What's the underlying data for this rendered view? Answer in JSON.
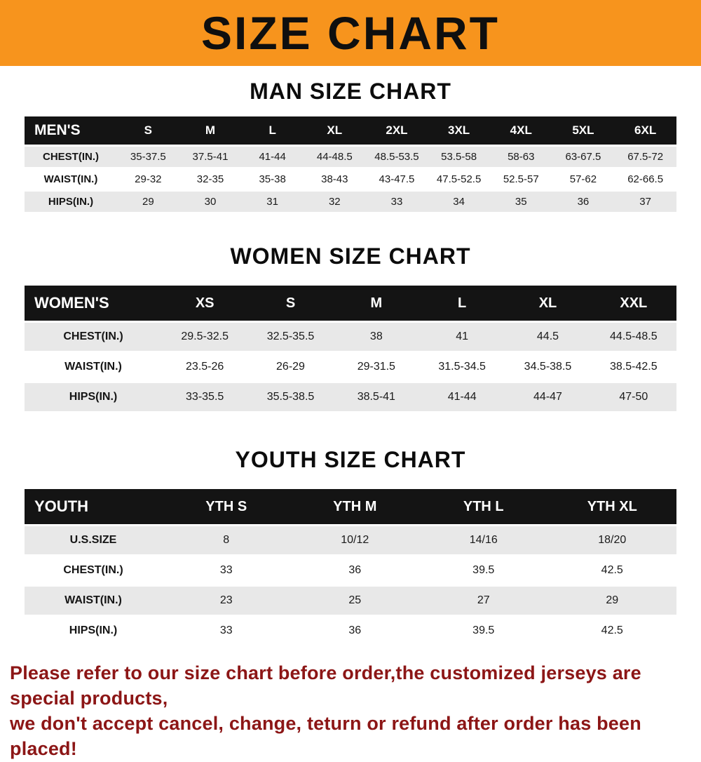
{
  "banner": {
    "title": "SIZE CHART",
    "bg_color": "#F7941D",
    "text_color": "#0F0F0F"
  },
  "chart_data": [
    {
      "type": "table",
      "title": "MAN SIZE CHART",
      "columns": [
        "MEN'S",
        "S",
        "M",
        "L",
        "XL",
        "2XL",
        "3XL",
        "4XL",
        "5XL",
        "6XL"
      ],
      "rows": [
        [
          "CHEST(IN.)",
          "35-37.5",
          "37.5-41",
          "41-44",
          "44-48.5",
          "48.5-53.5",
          "53.5-58",
          "58-63",
          "63-67.5",
          "67.5-72"
        ],
        [
          "WAIST(IN.)",
          "29-32",
          "32-35",
          "35-38",
          "38-43",
          "43-47.5",
          "47.5-52.5",
          "52.5-57",
          "57-62",
          "62-66.5"
        ],
        [
          "HIPS(IN.)",
          "29",
          "30",
          "31",
          "32",
          "33",
          "34",
          "35",
          "36",
          "37"
        ]
      ]
    },
    {
      "type": "table",
      "title": "WOMEN SIZE CHART",
      "columns": [
        "WOMEN'S",
        "XS",
        "S",
        "M",
        "L",
        "XL",
        "XXL"
      ],
      "rows": [
        [
          "CHEST(IN.)",
          "29.5-32.5",
          "32.5-35.5",
          "38",
          "41",
          "44.5",
          "44.5-48.5"
        ],
        [
          "WAIST(IN.)",
          "23.5-26",
          "26-29",
          "29-31.5",
          "31.5-34.5",
          "34.5-38.5",
          "38.5-42.5"
        ],
        [
          "HIPS(IN.)",
          "33-35.5",
          "35.5-38.5",
          "38.5-41",
          "41-44",
          "44-47",
          "47-50"
        ]
      ]
    },
    {
      "type": "table",
      "title": "YOUTH SIZE CHART",
      "columns": [
        "YOUTH",
        "YTH S",
        "YTH M",
        "YTH L",
        "YTH XL"
      ],
      "rows": [
        [
          "U.S.SIZE",
          "8",
          "10/12",
          "14/16",
          "18/20"
        ],
        [
          "CHEST(IN.)",
          "33",
          "36",
          "39.5",
          "42.5"
        ],
        [
          "WAIST(IN.)",
          "23",
          "25",
          "27",
          "29"
        ],
        [
          "HIPS(IN.)",
          "33",
          "36",
          "39.5",
          "42.5"
        ]
      ]
    }
  ],
  "footer": {
    "line1": "Please refer to our size chart before order,the customized jerseys are special products,",
    "line2": "we don't accept cancel, change, teturn or refund after order has been placed!",
    "text_color": "#8C1616"
  },
  "colors": {
    "header_row_bg": "#141414",
    "alt_row_bg": "#E8E8E8",
    "banner_orange": "#F7941D"
  }
}
